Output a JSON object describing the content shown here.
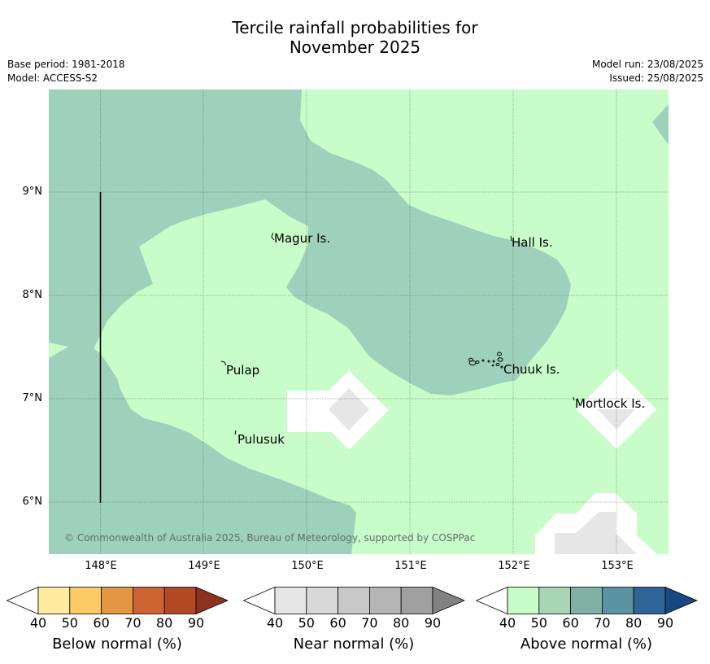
{
  "title": {
    "line1": "Tercile rainfall probabilities for",
    "line2": "November 2025"
  },
  "header": {
    "base_period": "Base period: 1981-2018",
    "model": "Model: ACCESS-S2",
    "model_run": "Model run: 23/08/2025",
    "issued": "Issued: 25/08/2025"
  },
  "map": {
    "lat_labels": [
      "9°N",
      "8°N",
      "7°N",
      "6°N"
    ],
    "lon_labels": [
      "148°E",
      "149°E",
      "150°E",
      "151°E",
      "152°E",
      "153°E"
    ],
    "places": {
      "magur": "Magur Is.",
      "hall": "Hall Is.",
      "pulap": "Pulap",
      "chuuk": "Chuuk Is.",
      "mortlock": "Mortlock Is.",
      "pulusuk": "Pulusuk"
    },
    "copyright": "© Commonwealth of Australia 2025, Bureau of Meteorology, supported by COSPPac",
    "colors": {
      "above_40_50": "#c8fcc8",
      "above_50_60": "#9ed1bb",
      "near_40_50": "#e6e6e6",
      "no_signal": "#ffffff"
    }
  },
  "legend": {
    "ticks": [
      "40",
      "50",
      "60",
      "70",
      "80",
      "90"
    ],
    "below": {
      "label": "Below normal (%)",
      "colors": [
        "#ffffff",
        "#ffeba0",
        "#fdca65",
        "#e39744",
        "#cd6332",
        "#b34a26",
        "#8f3120"
      ]
    },
    "near": {
      "label": "Near normal (%)",
      "colors": [
        "#ffffff",
        "#e6e6e6",
        "#d8d8d8",
        "#c8c8c8",
        "#b4b4b4",
        "#a0a0a0",
        "#828282"
      ]
    },
    "above": {
      "label": "Above normal (%)",
      "colors": [
        "#ffffff",
        "#c8fcc8",
        "#a7d6b7",
        "#7fb2a5",
        "#5a93a2",
        "#306598",
        "#17487f"
      ]
    }
  }
}
